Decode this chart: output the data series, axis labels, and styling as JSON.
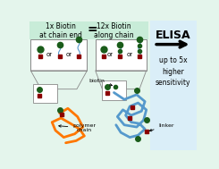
{
  "bg_green": "#c8ecd8",
  "bg_light_green": "#e4f5ec",
  "bg_blue": "#daeef8",
  "white": "#ffffff",
  "dark_green": "#1a5c1a",
  "dark_red": "#8b0000",
  "crimson": "#cc2222",
  "orange": "#ff7700",
  "blue_chain": "#5599cc",
  "gray": "#888888",
  "black": "#000000",
  "title1": "1x Biotin\nat chain end",
  "title2": "12x Biotin\nalong chain",
  "elisa_text": "ELISA",
  "result_text": "up to 5x\nhigher\nsensitivity",
  "label_biotin": "biotin",
  "label_polymer": "polymer\nchain",
  "label_linker": "linker",
  "equals_sign": "="
}
